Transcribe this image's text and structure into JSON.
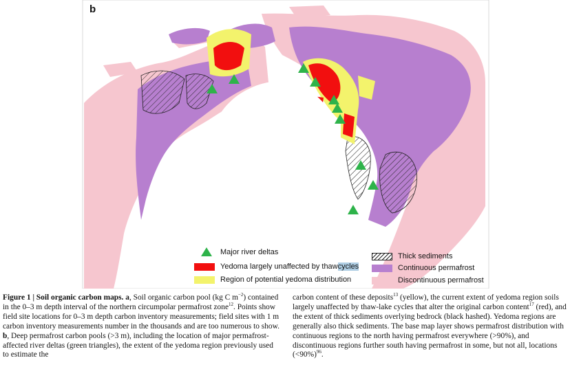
{
  "panel_label": "b",
  "legend": {
    "river_deltas": "Major river deltas",
    "yedoma_prefix": "Yedoma largely unaffected by thaw ",
    "yedoma_highlight": "cycles",
    "potential_yedoma": "Region of potential yedoma distribution",
    "thick_sediments": "Thick sediments",
    "continuous": "Continuous permafrost",
    "discontinuous": "Discontinuous permafrost"
  },
  "colors": {
    "continuous_permafrost": "#b77fcf",
    "discontinuous_permafrost": "#f6c6cf",
    "yedoma": "#f20f0f",
    "potential_yedoma": "#f3f36c",
    "river_delta": "#2eb34a",
    "background": "#ffffff"
  },
  "caption": {
    "left": {
      "figure_label": "Figure 1 | Soil organic carbon maps.",
      "a_label": "a",
      "text_a": ", Soil organic carbon pool (kg C m",
      "unit_exp": "−2",
      "text_a2": ") contained in the 0–3 m depth interval of the northern circumpolar permafrost zone",
      "ref1": "12",
      "text_a3": ". Points show field site locations for 0–3 m depth carbon inventory measurements; field sites with 1 m carbon inventory measurements number in the thousands and are too numerous to show. ",
      "b_label": "b",
      "text_b": ", Deep permafrost carbon pools (>3 m), including the location of major permafrost-affected river deltas (green triangles), the extent of the yedoma region previously used to estimate the"
    },
    "right": {
      "text_1": "carbon content of these deposits",
      "ref2": "13",
      "text_2": " (yellow), the current extent of yedoma region soils largely unaffected by thaw-lake cycles that alter the original carbon content",
      "ref3": "17",
      "text_3": " (red), and the extent of thick sediments overlying bedrock (black hashed). Yedoma regions are generally also thick sediments. The base map layer shows permafrost distribution with continuous regions to the north having permafrost everywhere (>90%), and discontinuous regions further south having permafrost in some, but not all, locations (<90%)",
      "ref4": "96",
      "text_4": "."
    }
  }
}
